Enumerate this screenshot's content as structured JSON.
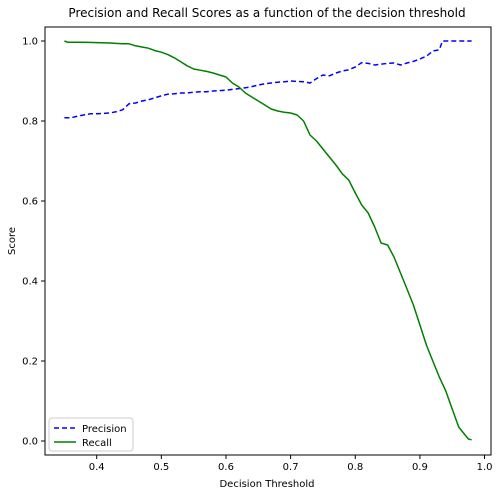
{
  "chart_data": {
    "type": "line",
    "title": "Precision and Recall Scores as a function of the decision threshold",
    "xlabel": "Decision Threshold",
    "ylabel": "Score",
    "xlim": [
      0.32,
      1.01
    ],
    "ylim": [
      -0.035,
      1.035
    ],
    "xticks": [
      0.4,
      0.5,
      0.6,
      0.7,
      0.8,
      0.9,
      1.0
    ],
    "xtick_labels": [
      "0.4",
      "0.5",
      "0.6",
      "0.7",
      "0.8",
      "0.9",
      "1.0"
    ],
    "yticks": [
      0.0,
      0.2,
      0.4,
      0.6,
      0.8,
      1.0
    ],
    "ytick_labels": [
      "0.0",
      "0.2",
      "0.4",
      "0.6",
      "0.8",
      "1.0"
    ],
    "grid": false,
    "legend_position": "lower-left",
    "series": [
      {
        "name": "Precision",
        "color": "#0000ff",
        "style": "dashed",
        "x": [
          0.35,
          0.36,
          0.37,
          0.38,
          0.39,
          0.4,
          0.42,
          0.43,
          0.44,
          0.45,
          0.46,
          0.47,
          0.48,
          0.49,
          0.5,
          0.51,
          0.52,
          0.53,
          0.54,
          0.55,
          0.56,
          0.57,
          0.58,
          0.59,
          0.6,
          0.61,
          0.62,
          0.63,
          0.64,
          0.65,
          0.66,
          0.67,
          0.68,
          0.69,
          0.7,
          0.71,
          0.72,
          0.73,
          0.74,
          0.75,
          0.76,
          0.77,
          0.78,
          0.79,
          0.8,
          0.81,
          0.82,
          0.83,
          0.84,
          0.85,
          0.86,
          0.87,
          0.88,
          0.89,
          0.9,
          0.91,
          0.92,
          0.93,
          0.935,
          0.94,
          0.95,
          0.96,
          0.97,
          0.98
        ],
        "values": [
          0.808,
          0.808,
          0.812,
          0.815,
          0.818,
          0.818,
          0.82,
          0.823,
          0.828,
          0.843,
          0.845,
          0.85,
          0.853,
          0.858,
          0.863,
          0.867,
          0.868,
          0.87,
          0.87,
          0.872,
          0.873,
          0.873,
          0.875,
          0.876,
          0.877,
          0.879,
          0.881,
          0.883,
          0.886,
          0.89,
          0.893,
          0.895,
          0.897,
          0.898,
          0.9,
          0.899,
          0.898,
          0.895,
          0.906,
          0.915,
          0.913,
          0.92,
          0.925,
          0.928,
          0.935,
          0.946,
          0.944,
          0.94,
          0.942,
          0.944,
          0.945,
          0.94,
          0.945,
          0.949,
          0.955,
          0.962,
          0.975,
          0.978,
          1.0,
          1.0,
          1.0,
          1.0,
          1.0,
          1.0
        ]
      },
      {
        "name": "Recall",
        "color": "#008000",
        "style": "solid",
        "x": [
          0.35,
          0.355,
          0.37,
          0.38,
          0.4,
          0.42,
          0.44,
          0.45,
          0.46,
          0.47,
          0.48,
          0.49,
          0.5,
          0.51,
          0.52,
          0.53,
          0.54,
          0.55,
          0.56,
          0.57,
          0.58,
          0.59,
          0.6,
          0.61,
          0.62,
          0.63,
          0.64,
          0.65,
          0.66,
          0.67,
          0.68,
          0.69,
          0.7,
          0.71,
          0.72,
          0.73,
          0.74,
          0.75,
          0.76,
          0.77,
          0.78,
          0.79,
          0.8,
          0.81,
          0.82,
          0.83,
          0.84,
          0.85,
          0.86,
          0.87,
          0.88,
          0.89,
          0.9,
          0.91,
          0.92,
          0.93,
          0.94,
          0.95,
          0.96,
          0.97,
          0.975,
          0.98
        ],
        "values": [
          1.0,
          0.997,
          0.997,
          0.997,
          0.996,
          0.995,
          0.993,
          0.993,
          0.988,
          0.985,
          0.982,
          0.976,
          0.972,
          0.966,
          0.958,
          0.948,
          0.938,
          0.93,
          0.927,
          0.924,
          0.92,
          0.915,
          0.91,
          0.895,
          0.885,
          0.87,
          0.86,
          0.85,
          0.84,
          0.83,
          0.825,
          0.822,
          0.82,
          0.815,
          0.8,
          0.765,
          0.75,
          0.73,
          0.71,
          0.69,
          0.668,
          0.652,
          0.62,
          0.59,
          0.57,
          0.535,
          0.495,
          0.49,
          0.46,
          0.42,
          0.38,
          0.34,
          0.29,
          0.24,
          0.2,
          0.16,
          0.125,
          0.08,
          0.035,
          0.015,
          0.005,
          0.003
        ]
      }
    ]
  }
}
